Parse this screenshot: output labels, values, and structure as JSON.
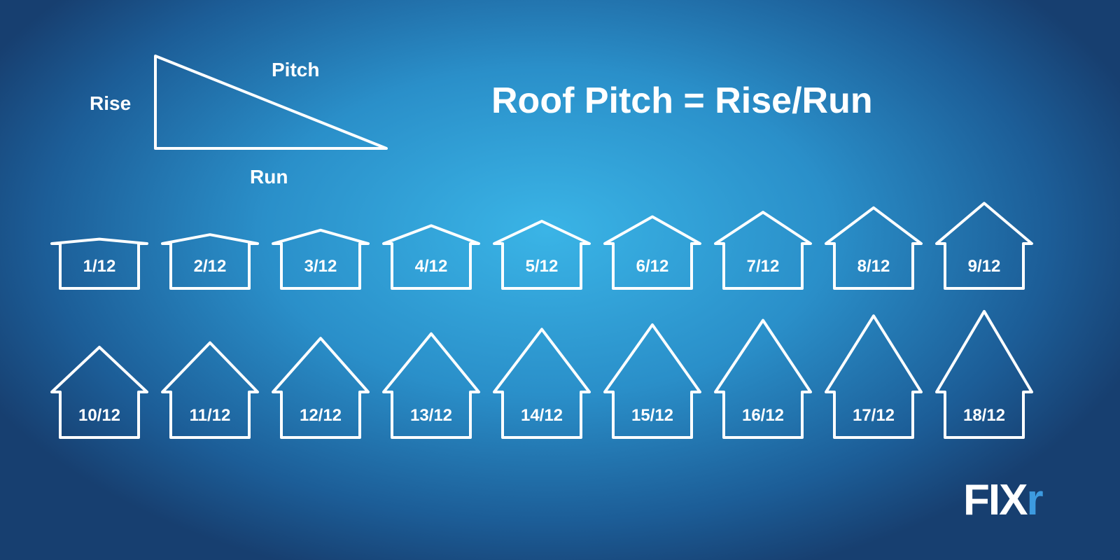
{
  "diagram": {
    "rise_label": "Rise",
    "pitch_label": "Pitch",
    "run_label": "Run"
  },
  "title": "Roof Pitch = Rise/Run",
  "pitches": [
    "1/12",
    "2/12",
    "3/12",
    "4/12",
    "5/12",
    "6/12",
    "7/12",
    "8/12",
    "9/12",
    "10/12",
    "11/12",
    "12/12",
    "13/12",
    "14/12",
    "15/12",
    "16/12",
    "17/12",
    "18/12"
  ],
  "logo": {
    "text": "FIXr",
    "accent_color": "#3d9be0"
  },
  "colors": {
    "line": "#ffffff"
  }
}
